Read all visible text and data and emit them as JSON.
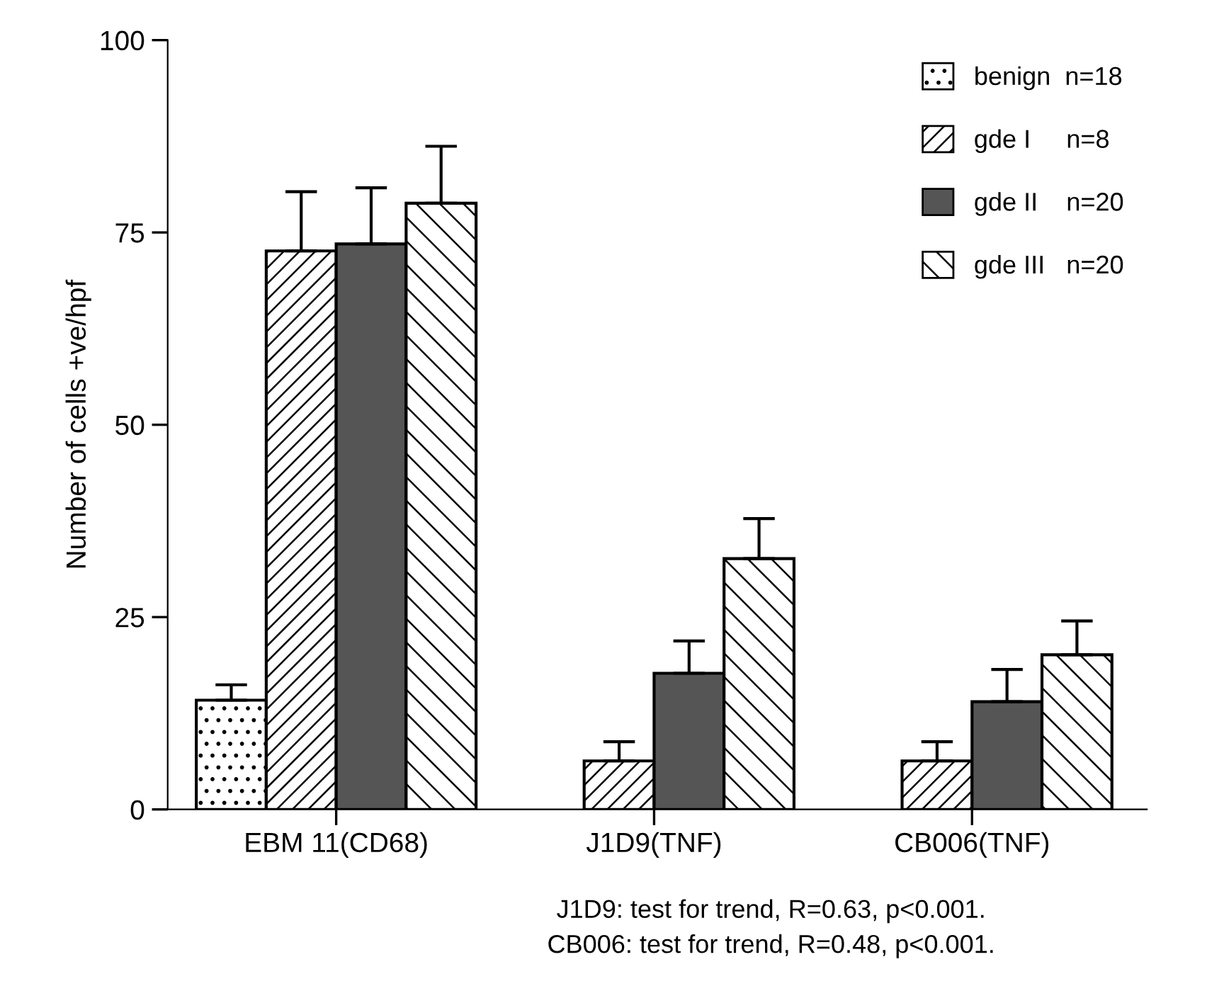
{
  "chart_data": {
    "type": "bar",
    "ylabel": "Number of cells +ve/hpf",
    "categories": [
      "EBM 11(CD68)",
      "J1D9(TNF)",
      "CB006(TNF)"
    ],
    "series": [
      {
        "name": "benign  n=18",
        "color": "#ffffff",
        "values": [
          14.2,
          null,
          null
        ],
        "errors": [
          [
            14.2,
            16.2
          ],
          null,
          null
        ]
      },
      {
        "name": "gde I     n=8",
        "color": "#ffffff",
        "values": [
          72.6,
          6.3,
          6.3
        ],
        "errors": [
          [
            72.6,
            80.3
          ],
          [
            6.3,
            8.8
          ],
          [
            6.3,
            8.8
          ]
        ]
      },
      {
        "name": "gde II    n=20",
        "color": "#555555",
        "values": [
          73.5,
          17.7,
          14.0
        ],
        "errors": [
          [
            73.5,
            80.8
          ],
          [
            17.7,
            21.9
          ],
          [
            14.0,
            18.2
          ]
        ]
      },
      {
        "name": "gde III   n=20",
        "color": "#ffffff",
        "values": [
          78.8,
          32.6,
          20.1
        ],
        "errors": [
          [
            78.8,
            86.2
          ],
          [
            32.6,
            37.8
          ],
          [
            20.1,
            24.5
          ]
        ]
      }
    ],
    "ylim": [
      0,
      100
    ],
    "yticks": [
      0,
      25,
      50,
      75,
      100
    ],
    "grid": false,
    "legend": "top right",
    "annotations": [
      "J1D9: test for trend, R=0.63, p<0.001.",
      "CB006: test for trend, R=0.48, p<0.001."
    ]
  }
}
